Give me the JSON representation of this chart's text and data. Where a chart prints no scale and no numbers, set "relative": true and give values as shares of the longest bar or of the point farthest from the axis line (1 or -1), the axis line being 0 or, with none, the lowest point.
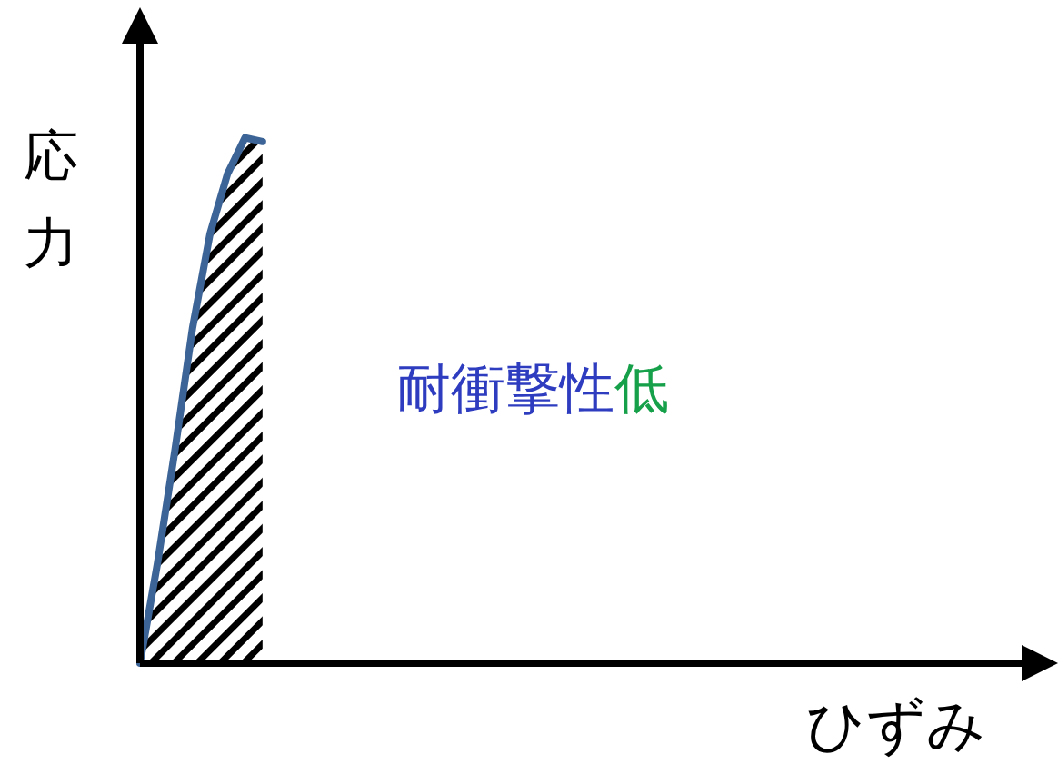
{
  "chart_data": {
    "type": "area",
    "relative": true,
    "xlabel": "ひずみ",
    "ylabel": "応力",
    "annotations": [
      "耐衝撃性",
      "低"
    ],
    "categories": [
      null,
      null,
      null,
      null,
      null,
      null,
      null,
      null,
      null,
      null,
      null,
      null,
      null,
      null,
      null,
      null,
      null,
      null,
      null,
      null,
      null,
      null,
      null,
      null,
      null,
      null,
      null,
      null,
      null,
      null,
      null,
      null,
      null,
      null,
      null,
      null,
      null,
      null,
      null,
      null,
      null,
      null,
      null,
      null,
      null,
      null,
      null,
      null,
      null,
      null,
      null,
      null
    ],
    "series": [
      {
        "color": "#3d6496",
        "values": [
          0,
          0.19,
          0.407,
          0.638,
          0.817,
          0.931,
          1,
          0.993,
          null,
          null,
          null,
          null,
          null,
          null,
          null,
          null,
          null,
          null,
          null,
          null,
          null,
          null,
          null,
          null,
          null,
          null,
          null,
          null,
          null,
          null,
          null,
          null,
          null,
          null,
          null,
          null,
          null,
          null,
          null,
          null,
          null,
          null,
          null,
          null,
          null,
          null,
          null,
          null,
          null,
          null,
          null,
          null
        ]
      }
    ]
  }
}
